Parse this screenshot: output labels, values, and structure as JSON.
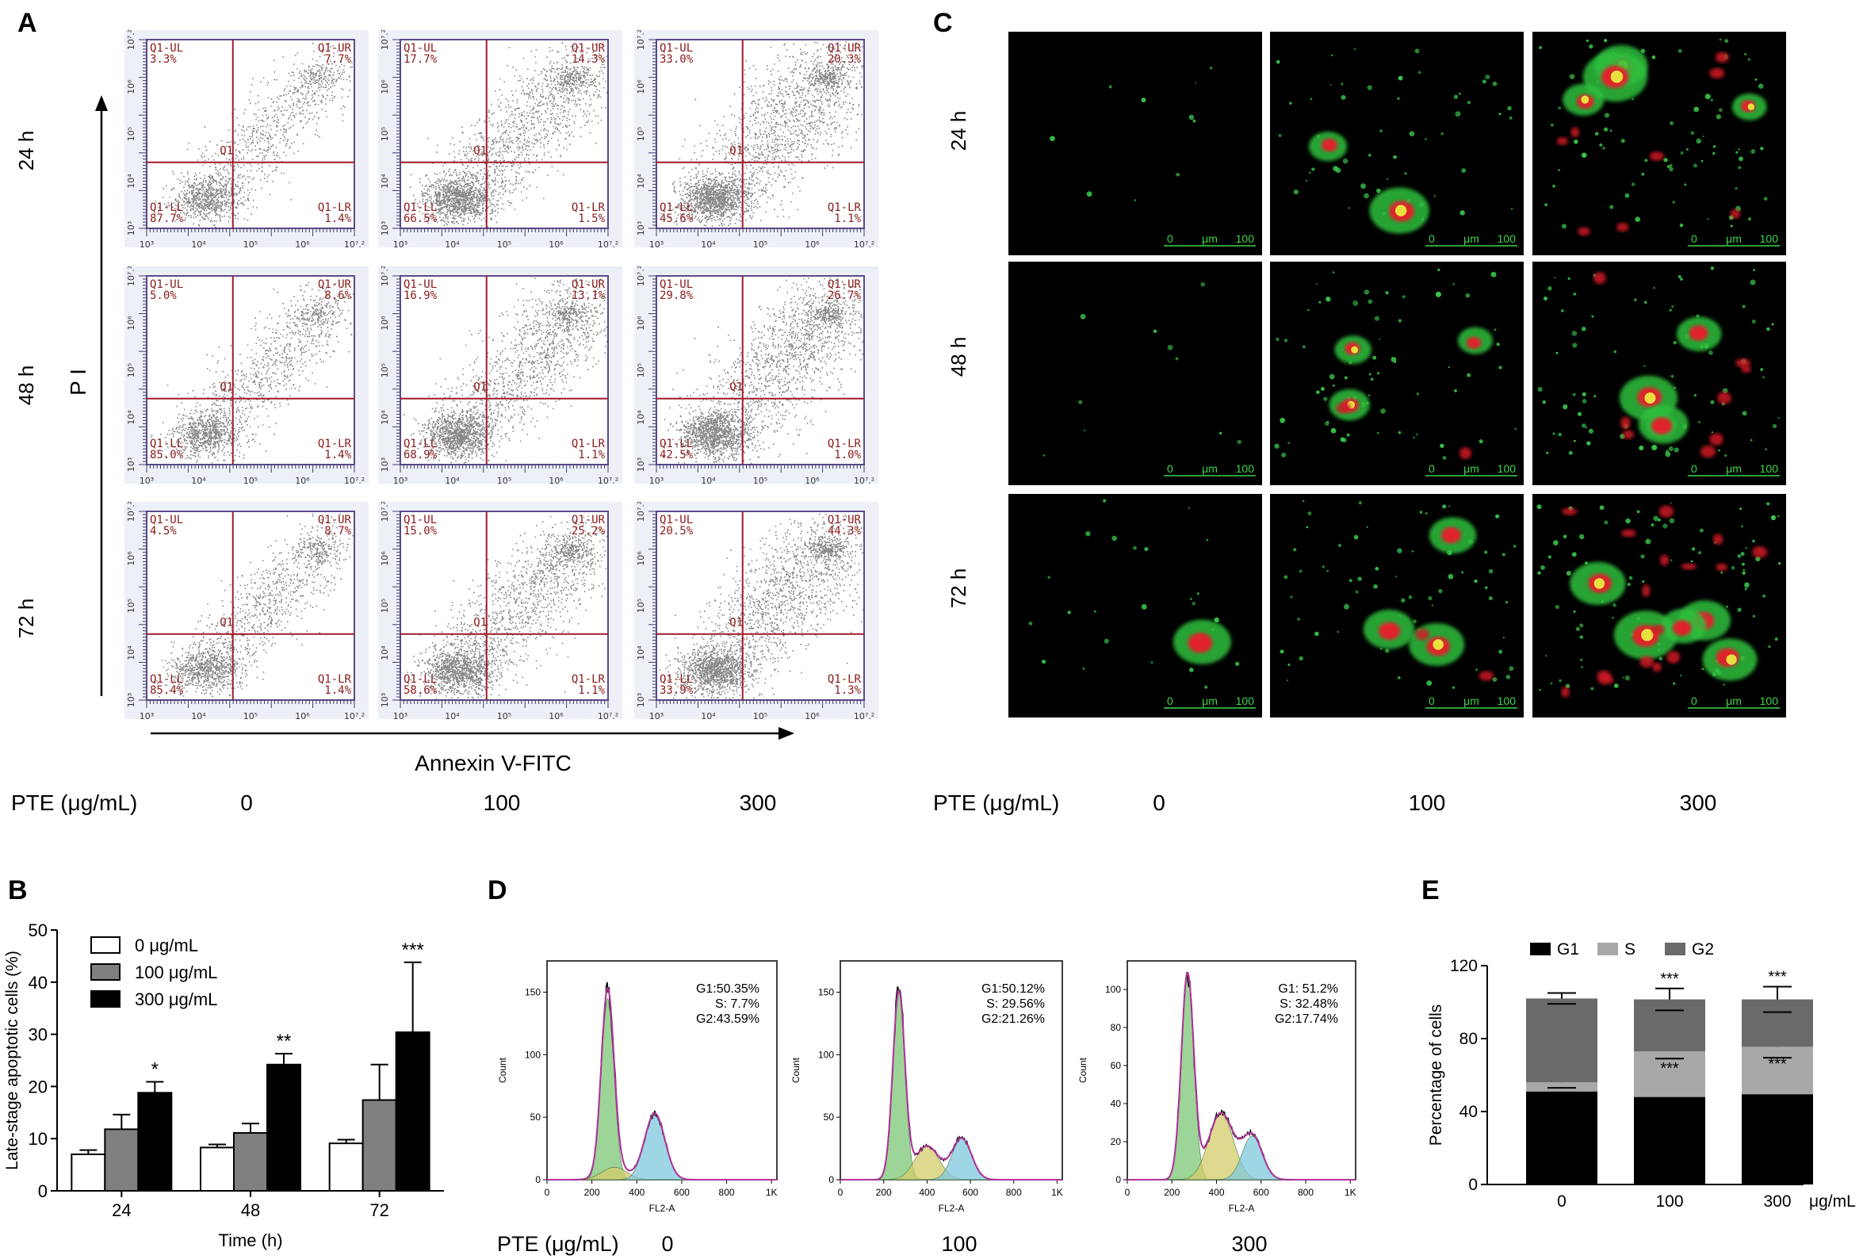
{
  "panel_labels": {
    "a": "A",
    "b": "B",
    "c": "C",
    "d": "D",
    "e": "E"
  },
  "panel_a": {
    "row_labels": [
      "24 h",
      "48 h",
      "72 h"
    ],
    "y_axis_label": "P I",
    "x_axis_label": "Annexin V-FITC",
    "center_label": "Q1",
    "tick_exponents": [
      "10³",
      "10⁴",
      "10⁵",
      "10⁶",
      "10⁷.²"
    ],
    "plots": [
      [
        {
          "ul": "Q1-UL\n3.3%",
          "ur": "Q1-UR\n7.7%",
          "ll": "Q1-LL\n87.7%",
          "lr": "Q1-LR\n1.4%",
          "density": 0.25
        },
        {
          "ul": "Q1-UL\n17.7%",
          "ur": "Q1-UR\n14.3%",
          "ll": "Q1-LL\n66.5%",
          "lr": "Q1-LR\n1.5%",
          "density": 0.6
        },
        {
          "ul": "Q1-UL\n33.0%",
          "ur": "Q1-UR\n20.3%",
          "ll": "Q1-LL\n45.6%",
          "lr": "Q1-LR\n1.1%",
          "density": 0.75
        }
      ],
      [
        {
          "ul": "Q1-UL\n5.0%",
          "ur": "Q1-UR\n8.6%",
          "ll": "Q1-LL\n85.0%",
          "lr": "Q1-LR\n1.4%",
          "density": 0.3
        },
        {
          "ul": "Q1-UL\n16.9%",
          "ur": "Q1-UR\n13.1%",
          "ll": "Q1-LL\n68.9%",
          "lr": "Q1-LR\n1.1%",
          "density": 0.6
        },
        {
          "ul": "Q1-UL\n29.8%",
          "ur": "Q1-UR\n26.7%",
          "ll": "Q1-LL\n42.5%",
          "lr": "Q1-LR\n1.0%",
          "density": 0.75
        }
      ],
      [
        {
          "ul": "Q1-UL\n4.5%",
          "ur": "Q1-UR\n8.7%",
          "ll": "Q1-LL\n85.4%",
          "lr": "Q1-LR\n1.4%",
          "density": 0.3
        },
        {
          "ul": "Q1-UL\n15.0%",
          "ur": "Q1-UR\n25.2%",
          "ll": "Q1-LL\n58.6%",
          "lr": "Q1-LR\n1.1%",
          "density": 0.6
        },
        {
          "ul": "Q1-UL\n20.5%",
          "ur": "Q1-UR\n44.3%",
          "ll": "Q1-LL\n33.9%",
          "lr": "Q1-LR\n1.3%",
          "density": 0.75
        }
      ]
    ],
    "pte_label": "PTE (μg/mL)",
    "concentrations": [
      "0",
      "100",
      "300"
    ]
  },
  "panel_c": {
    "row_labels": [
      "24 h",
      "48 h",
      "72 h"
    ],
    "scale_bar": {
      "start": "0",
      "unit": "μm",
      "end": "100"
    },
    "pte_label": "PTE (μg/mL)",
    "concentrations": [
      "0",
      "100",
      "300"
    ]
  },
  "chart_data": [
    {
      "panel": "B",
      "type": "bar",
      "categories": [
        "24",
        "48",
        "72"
      ],
      "series": [
        {
          "name": "0    μg/mL",
          "values": [
            7.0,
            8.3,
            9.1
          ],
          "errors": [
            0.8,
            0.6,
            0.7
          ],
          "color": "#ffffff"
        },
        {
          "name": "100 μg/mL",
          "values": [
            11.8,
            11.1,
            17.4
          ],
          "errors": [
            2.8,
            1.8,
            6.8
          ],
          "color": "#808080"
        },
        {
          "name": "300 μg/mL",
          "values": [
            18.8,
            24.2,
            30.4
          ],
          "errors": [
            2.1,
            2.1,
            13.4
          ],
          "color": "#000000"
        }
      ],
      "annotations": [
        "*",
        "**",
        "***"
      ],
      "xlabel": "Time (h)",
      "ylabel": "Late-stage apoptotic cells (%)",
      "ylim": [
        0,
        50
      ],
      "yticks": [
        "0",
        "10",
        "20",
        "30",
        "40",
        "50"
      ]
    },
    {
      "panel": "D",
      "type": "area",
      "xlabel": "FL2-A",
      "ylabel": "Count",
      "xticks": [
        "0",
        "200",
        "400",
        "600",
        "800",
        "1K"
      ],
      "pte_label": "PTE (μg/mL)",
      "histograms": [
        {
          "concentration": "0",
          "stats": [
            "G1:50.35%",
            "S:      7.7%",
            "G2:43.59%"
          ],
          "ylim": [
            0,
            175
          ],
          "yticks": [
            "0",
            "50",
            "100",
            "150"
          ],
          "g1_peak": 270,
          "g1_height": 145,
          "s_peak": 300,
          "s_height": 10,
          "g2_peak": 480,
          "g2_height": 53
        },
        {
          "concentration": "100",
          "stats": [
            "G1:50.12%",
            "S:   29.56%",
            "G2:21.26%"
          ],
          "ylim": [
            0,
            175
          ],
          "yticks": [
            "0",
            "50",
            "100",
            "150"
          ],
          "g1_peak": 270,
          "g1_height": 150,
          "s_peak": 400,
          "s_height": 27,
          "g2_peak": 560,
          "g2_height": 33
        },
        {
          "concentration": "300",
          "stats": [
            "G1: 51.2%",
            "S:  32.48%",
            "G2:17.74%"
          ],
          "ylim": [
            0,
            115
          ],
          "yticks": [
            "0",
            "20",
            "40",
            "60",
            "80",
            "100"
          ],
          "g1_peak": 270,
          "g1_height": 108,
          "s_peak": 420,
          "s_height": 35,
          "g2_peak": 560,
          "g2_height": 23
        }
      ],
      "colors": {
        "g1": "#7cc576",
        "s": "#d4cc6a",
        "g2": "#7ec8dc",
        "fit": "#b0339b",
        "raw": "#111111"
      }
    },
    {
      "panel": "E",
      "type": "bar",
      "stacked": true,
      "categories": [
        "0",
        "100",
        "300"
      ],
      "unit_label": "μg/mL",
      "series": [
        {
          "name": "G1",
          "values": [
            51,
            48,
            49.5
          ],
          "errors": [
            1.5,
            1.5,
            1.2
          ],
          "color": "#000000"
        },
        {
          "name": "S",
          "values": [
            5,
            25,
            26
          ],
          "errors": [
            3,
            4,
            6
          ],
          "color": "#a8a8a8"
        },
        {
          "name": "G2",
          "values": [
            46,
            28.5,
            26
          ],
          "errors": [
            3,
            6,
            7
          ],
          "color": "#6a6a6a"
        }
      ],
      "annotations": [
        "***",
        "***",
        "***",
        "***"
      ],
      "ylabel": "Percentage of cells",
      "ylim": [
        0,
        120
      ],
      "yticks": [
        "0",
        "40",
        "80",
        "120"
      ]
    }
  ]
}
